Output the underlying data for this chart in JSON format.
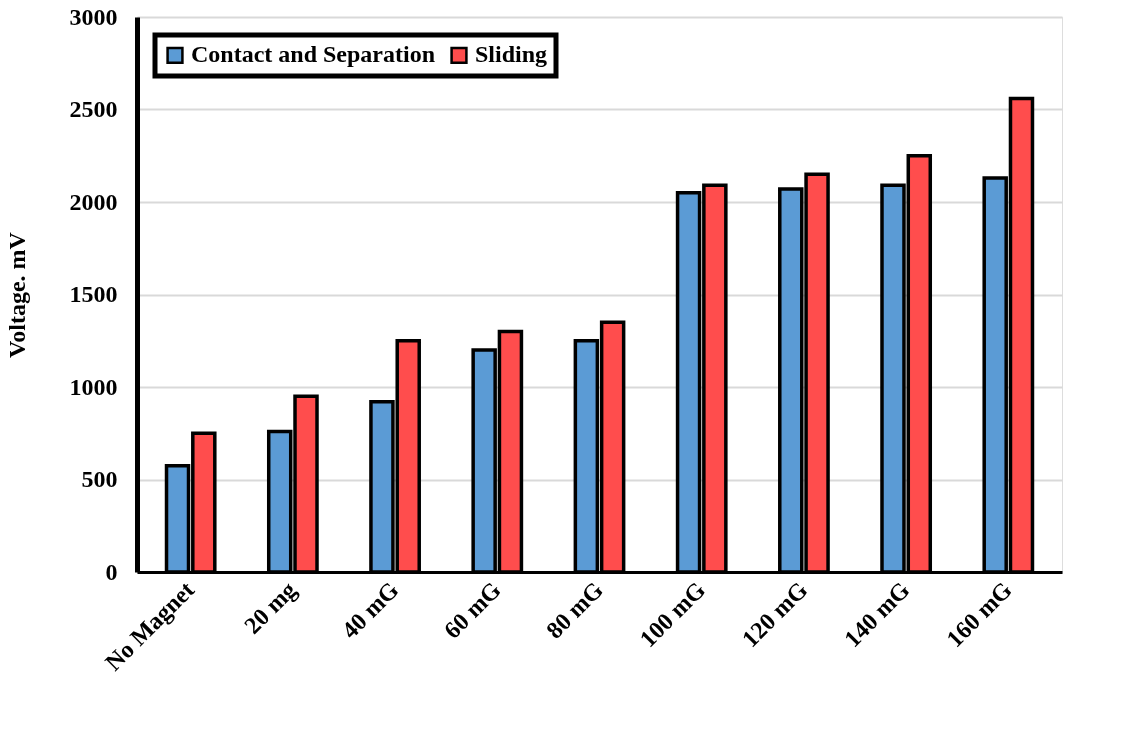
{
  "chart_data": {
    "type": "bar",
    "ylabel": "Voltage. mV",
    "categories": [
      "No Magnet",
      "20 mg",
      "40 mG",
      "60 mG",
      "80 mG",
      "100 mG",
      "120 mG",
      "140 mG",
      "160 mG"
    ],
    "series": [
      {
        "name": "Contact and Separation",
        "color": "#5b9bd5",
        "values": [
          575,
          760,
          920,
          1200,
          1250,
          2050,
          2070,
          2090,
          2130
        ]
      },
      {
        "name": "Sliding",
        "color": "#ff4d4d",
        "values": [
          750,
          950,
          1250,
          1300,
          1350,
          2090,
          2150,
          2250,
          2560
        ]
      }
    ],
    "ylim": [
      0,
      3000
    ],
    "yticks": [
      0,
      500,
      1000,
      1500,
      2000,
      2500,
      3000
    ],
    "grid": "y",
    "legend": "top left"
  }
}
